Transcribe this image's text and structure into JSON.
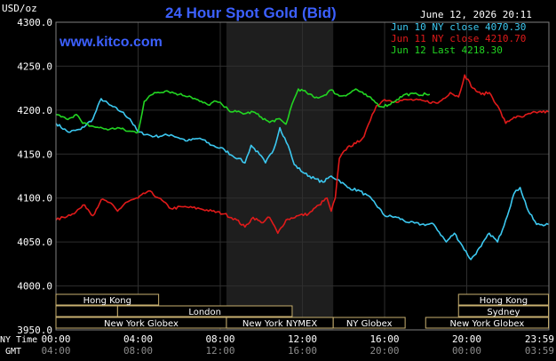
{
  "header": {
    "title": "24 Hour Spot Gold (Bid)",
    "datetime": "June 12, 2026 20:11",
    "watermark": "www.kitco.com",
    "y_unit": "USD/oz"
  },
  "legend": [
    {
      "label": "Jun 10 NY close 4070.30",
      "color": "#3cc8f0"
    },
    {
      "label": "Jun 11 NY close 4210.70",
      "color": "#e01a1a"
    },
    {
      "label": "Jun 12 Last 4218.30",
      "color": "#22d422"
    }
  ],
  "markets": [
    {
      "label": "Hong Kong",
      "from": 0,
      "to": 5
    },
    {
      "label": "Hong Kong",
      "from": 19.6,
      "to": 23.98
    },
    {
      "label": "Sydney",
      "from": 19.6,
      "to": 23.98
    },
    {
      "label": "London",
      "from": 3,
      "to": 11.5
    },
    {
      "label": "New York Globex",
      "from": 0,
      "to": 8.3
    },
    {
      "label": "New York NYMEX",
      "from": 8.3,
      "to": 13.5
    },
    {
      "label": "NY Globex",
      "from": 13.5,
      "to": 17
    },
    {
      "label": "New York Globex",
      "from": 18,
      "to": 23.98
    }
  ],
  "time_axis": {
    "ny_label": "NY Time",
    "gmt_label": "GMT",
    "ny_ticks": [
      "00:00",
      "04:00",
      "08:00",
      "12:00",
      "16:00",
      "20:00",
      "23:59"
    ],
    "gmt_ticks": [
      "04:00",
      "08:00",
      "12:00",
      "16:00",
      "20:00",
      "00:00",
      "03:59"
    ]
  },
  "chart_data": {
    "type": "line",
    "title": "24 Hour Spot Gold (Bid)",
    "ylabel": "USD/oz",
    "ylim": [
      3950,
      4300
    ],
    "xlim": [
      0,
      24
    ],
    "yticks": [
      "3950.0",
      "4000.0",
      "4050.0",
      "4100.0",
      "4150.0",
      "4200.0",
      "4250.0",
      "4300.0"
    ],
    "shaded_region": [
      8.3,
      13.5
    ],
    "grid": true,
    "legend_position": "top-right",
    "series": [
      {
        "name": "Jun 10 NY close 4070.30",
        "color": "#3cc8f0",
        "points": [
          [
            0,
            4185
          ],
          [
            0.6,
            4175
          ],
          [
            1.2,
            4178
          ],
          [
            1.8,
            4190
          ],
          [
            2.2,
            4213
          ],
          [
            2.6,
            4206
          ],
          [
            3.2,
            4198
          ],
          [
            3.6,
            4190
          ],
          [
            4,
            4175
          ],
          [
            4.8,
            4170
          ],
          [
            5.6,
            4172
          ],
          [
            6.4,
            4165
          ],
          [
            7,
            4168
          ],
          [
            7.6,
            4160
          ],
          [
            8.2,
            4155
          ],
          [
            8.6,
            4148
          ],
          [
            8.9,
            4145
          ],
          [
            9.2,
            4140
          ],
          [
            9.5,
            4160
          ],
          [
            9.9,
            4150
          ],
          [
            10.2,
            4140
          ],
          [
            10.6,
            4155
          ],
          [
            10.9,
            4180
          ],
          [
            11.3,
            4160
          ],
          [
            11.6,
            4138
          ],
          [
            12.1,
            4128
          ],
          [
            12.6,
            4122
          ],
          [
            13,
            4118
          ],
          [
            13.4,
            4125
          ],
          [
            13.8,
            4120
          ],
          [
            14.2,
            4112
          ],
          [
            14.8,
            4108
          ],
          [
            15.4,
            4098
          ],
          [
            16,
            4080
          ],
          [
            16.6,
            4078
          ],
          [
            17.2,
            4072
          ],
          [
            17.8,
            4070
          ],
          [
            18.4,
            4070
          ],
          [
            19,
            4050
          ],
          [
            19.4,
            4060
          ],
          [
            19.8,
            4045
          ],
          [
            20.2,
            4030
          ],
          [
            20.7,
            4045
          ],
          [
            21.1,
            4060
          ],
          [
            21.5,
            4050
          ],
          [
            21.9,
            4075
          ],
          [
            22.3,
            4105
          ],
          [
            22.6,
            4112
          ],
          [
            23,
            4085
          ],
          [
            23.4,
            4070
          ],
          [
            23.98,
            4070
          ]
        ]
      },
      {
        "name": "Jun 11 NY close 4210.70",
        "color": "#e01a1a",
        "points": [
          [
            0,
            4075
          ],
          [
            0.8,
            4082
          ],
          [
            1.4,
            4092
          ],
          [
            1.8,
            4080
          ],
          [
            2.2,
            4098
          ],
          [
            2.6,
            4095
          ],
          [
            3,
            4085
          ],
          [
            3.4,
            4095
          ],
          [
            4,
            4100
          ],
          [
            4.5,
            4108
          ],
          [
            5,
            4100
          ],
          [
            5.6,
            4088
          ],
          [
            6.2,
            4090
          ],
          [
            7,
            4088
          ],
          [
            7.6,
            4085
          ],
          [
            8.2,
            4082
          ],
          [
            8.8,
            4075
          ],
          [
            9.2,
            4067
          ],
          [
            9.6,
            4078
          ],
          [
            10,
            4072
          ],
          [
            10.4,
            4078
          ],
          [
            10.8,
            4060
          ],
          [
            11.2,
            4075
          ],
          [
            11.8,
            4080
          ],
          [
            12.3,
            4082
          ],
          [
            12.8,
            4092
          ],
          [
            13.2,
            4100
          ],
          [
            13.4,
            4085
          ],
          [
            13.6,
            4100
          ],
          [
            13.8,
            4145
          ],
          [
            14.2,
            4158
          ],
          [
            14.6,
            4162
          ],
          [
            15,
            4170
          ],
          [
            15.3,
            4188
          ],
          [
            15.6,
            4205
          ],
          [
            16,
            4212
          ],
          [
            16.5,
            4210
          ],
          [
            17.2,
            4212
          ],
          [
            18,
            4210
          ],
          [
            18.6,
            4208
          ],
          [
            19.2,
            4220
          ],
          [
            19.6,
            4215
          ],
          [
            19.9,
            4240
          ],
          [
            20.3,
            4225
          ],
          [
            20.7,
            4218
          ],
          [
            21.1,
            4220
          ],
          [
            21.5,
            4205
          ],
          [
            21.9,
            4185
          ],
          [
            22.3,
            4192
          ],
          [
            22.7,
            4192
          ],
          [
            23.1,
            4196
          ],
          [
            23.5,
            4198
          ],
          [
            23.98,
            4198
          ]
        ]
      },
      {
        "name": "Jun 12 Last 4218.30",
        "color": "#22d422",
        "points": [
          [
            0,
            4195
          ],
          [
            0.5,
            4190
          ],
          [
            1,
            4195
          ],
          [
            1.3,
            4185
          ],
          [
            1.7,
            4182
          ],
          [
            2.1,
            4180
          ],
          [
            2.6,
            4178
          ],
          [
            3,
            4180
          ],
          [
            3.5,
            4176
          ],
          [
            4,
            4175
          ],
          [
            4.3,
            4210
          ],
          [
            4.8,
            4220
          ],
          [
            5.4,
            4222
          ],
          [
            6,
            4218
          ],
          [
            6.5,
            4216
          ],
          [
            7,
            4210
          ],
          [
            7.4,
            4206
          ],
          [
            7.8,
            4210
          ],
          [
            8.1,
            4206
          ],
          [
            8.4,
            4200
          ],
          [
            8.8,
            4198
          ],
          [
            9.2,
            4196
          ],
          [
            9.6,
            4198
          ],
          [
            10,
            4192
          ],
          [
            10.4,
            4186
          ],
          [
            10.8,
            4190
          ],
          [
            11.2,
            4184
          ],
          [
            11.5,
            4207
          ],
          [
            11.8,
            4224
          ],
          [
            12.2,
            4220
          ],
          [
            12.6,
            4214
          ],
          [
            13,
            4216
          ],
          [
            13.4,
            4223
          ],
          [
            13.8,
            4216
          ],
          [
            14.2,
            4218
          ],
          [
            14.6,
            4224
          ],
          [
            15,
            4218
          ],
          [
            15.4,
            4212
          ],
          [
            15.8,
            4204
          ],
          [
            16.2,
            4206
          ],
          [
            16.6,
            4212
          ],
          [
            17,
            4218
          ],
          [
            17.6,
            4218
          ],
          [
            18.2,
            4218
          ]
        ]
      }
    ]
  }
}
